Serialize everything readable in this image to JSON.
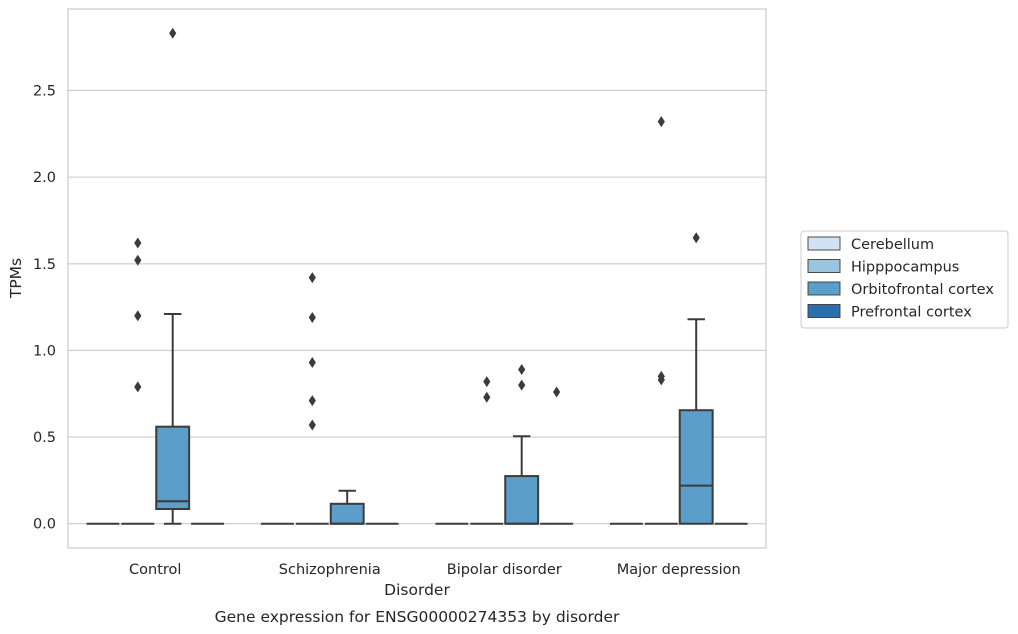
{
  "chart_data": {
    "type": "boxplot",
    "caption": "Gene expression for ENSG00000274353 by disorder",
    "xlabel": "Disorder",
    "ylabel": "TPMs",
    "ylim": [
      -0.14,
      2.97
    ],
    "yticks": [
      "0.0",
      "0.5",
      "1.0",
      "1.5",
      "2.0",
      "2.5"
    ],
    "grid": true,
    "legend_position": "right",
    "categories": [
      "Control",
      "Schizophrenia",
      "Bipolar disorder",
      "Major depression"
    ],
    "series": [
      {
        "name": "Cerebellum",
        "color": "#d1e2f2",
        "boxes": [
          {
            "q1": 0,
            "median": 0,
            "q3": 0,
            "whisker_low": 0,
            "whisker_high": 0,
            "outliers": []
          },
          {
            "q1": 0,
            "median": 0,
            "q3": 0,
            "whisker_low": 0,
            "whisker_high": 0,
            "outliers": []
          },
          {
            "q1": 0,
            "median": 0,
            "q3": 0,
            "whisker_low": 0,
            "whisker_high": 0,
            "outliers": []
          },
          {
            "q1": 0,
            "median": 0,
            "q3": 0,
            "whisker_low": 0,
            "whisker_high": 0,
            "outliers": []
          }
        ]
      },
      {
        "name": "Hipppocampus",
        "color": "#9ac5df",
        "boxes": [
          {
            "q1": 0,
            "median": 0,
            "q3": 0,
            "whisker_low": 0,
            "whisker_high": 0,
            "outliers": [
              0.79,
              1.2,
              1.52,
              1.62
            ]
          },
          {
            "q1": 0,
            "median": 0,
            "q3": 0,
            "whisker_low": 0,
            "whisker_high": 0,
            "outliers": [
              0.57,
              0.71,
              0.93,
              1.19,
              1.42
            ]
          },
          {
            "q1": 0,
            "median": 0,
            "q3": 0,
            "whisker_low": 0,
            "whisker_high": 0,
            "outliers": [
              0.73,
              0.82
            ]
          },
          {
            "q1": 0,
            "median": 0,
            "q3": 0,
            "whisker_low": 0,
            "whisker_high": 0,
            "outliers": [
              0.83,
              0.85,
              2.32
            ]
          }
        ]
      },
      {
        "name": "Orbitofrontal cortex",
        "color": "#5a9ec9",
        "boxes": [
          {
            "q1": 0.085,
            "median": 0.13,
            "q3": 0.56,
            "whisker_low": 0,
            "whisker_high": 1.21,
            "outliers": [
              2.83
            ]
          },
          {
            "q1": 0,
            "median": 0,
            "q3": 0.115,
            "whisker_low": 0,
            "whisker_high": 0.19,
            "outliers": []
          },
          {
            "q1": 0,
            "median": 0,
            "q3": 0.275,
            "whisker_low": 0,
            "whisker_high": 0.505,
            "outliers": [
              0.8,
              0.89
            ]
          },
          {
            "q1": 0,
            "median": 0.22,
            "q3": 0.655,
            "whisker_low": 0,
            "whisker_high": 1.18,
            "outliers": [
              1.65
            ]
          }
        ]
      },
      {
        "name": "Prefrontal cortex",
        "color": "#2d6fad",
        "boxes": [
          {
            "q1": 0,
            "median": 0,
            "q3": 0,
            "whisker_low": 0,
            "whisker_high": 0,
            "outliers": []
          },
          {
            "q1": 0,
            "median": 0,
            "q3": 0,
            "whisker_low": 0,
            "whisker_high": 0,
            "outliers": []
          },
          {
            "q1": 0,
            "median": 0,
            "q3": 0,
            "whisker_low": 0,
            "whisker_high": 0,
            "outliers": [
              0.76
            ]
          },
          {
            "q1": 0,
            "median": 0,
            "q3": 0,
            "whisker_low": 0,
            "whisker_high": 0,
            "outliers": []
          }
        ]
      }
    ]
  }
}
